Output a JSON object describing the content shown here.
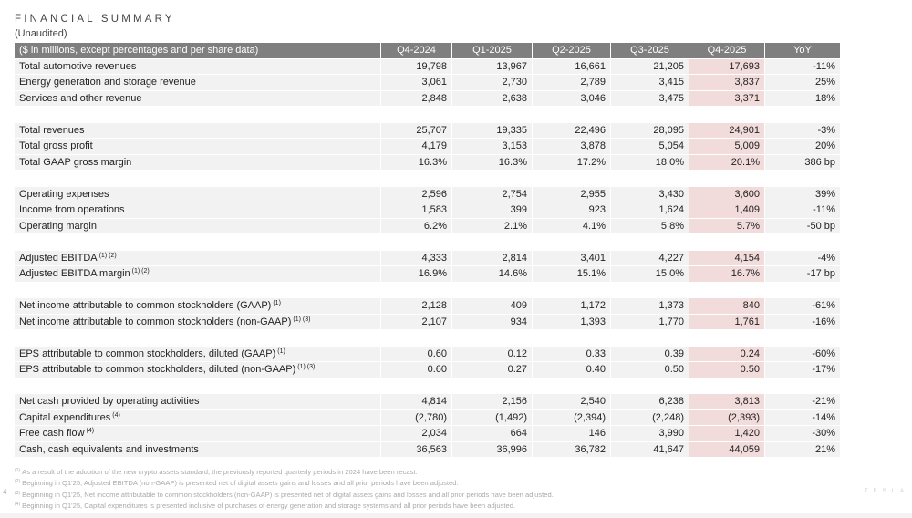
{
  "header": {
    "title": "FINANCIAL SUMMARY",
    "subtitle": "(Unaudited)"
  },
  "table": {
    "columns": [
      "($ in millions, except percentages and per share data)",
      "Q4-2024",
      "Q1-2025",
      "Q2-2025",
      "Q3-2025",
      "Q4-2025",
      "YoY"
    ],
    "highlight_color": "#f2dcdb",
    "header_color": "#7f7f7f",
    "groups": [
      [
        {
          "label": "Total automotive revenues",
          "sup": "",
          "values": [
            "19,798",
            "13,967",
            "16,661",
            "21,205",
            "17,693",
            "-11%"
          ]
        },
        {
          "label": "Energy generation and storage revenue",
          "sup": "",
          "values": [
            "3,061",
            "2,730",
            "2,789",
            "3,415",
            "3,837",
            "25%"
          ]
        },
        {
          "label": "Services and other revenue",
          "sup": "",
          "values": [
            "2,848",
            "2,638",
            "3,046",
            "3,475",
            "3,371",
            "18%"
          ]
        }
      ],
      [
        {
          "label": "Total revenues",
          "sup": "",
          "values": [
            "25,707",
            "19,335",
            "22,496",
            "28,095",
            "24,901",
            "-3%"
          ]
        },
        {
          "label": "Total gross profit",
          "sup": "",
          "values": [
            "4,179",
            "3,153",
            "3,878",
            "5,054",
            "5,009",
            "20%"
          ]
        },
        {
          "label": "Total GAAP gross margin",
          "sup": "",
          "values": [
            "16.3%",
            "16.3%",
            "17.2%",
            "18.0%",
            "20.1%",
            "386 bp"
          ]
        }
      ],
      [
        {
          "label": "Operating expenses",
          "sup": "",
          "values": [
            "2,596",
            "2,754",
            "2,955",
            "3,430",
            "3,600",
            "39%"
          ]
        },
        {
          "label": "Income from operations",
          "sup": "",
          "values": [
            "1,583",
            "399",
            "923",
            "1,624",
            "1,409",
            "-11%"
          ]
        },
        {
          "label": "Operating margin",
          "sup": "",
          "values": [
            "6.2%",
            "2.1%",
            "4.1%",
            "5.8%",
            "5.7%",
            "-50 bp"
          ]
        }
      ],
      [
        {
          "label": "Adjusted EBITDA",
          "sup": "(1) (2)",
          "values": [
            "4,333",
            "2,814",
            "3,401",
            "4,227",
            "4,154",
            "-4%"
          ]
        },
        {
          "label": "Adjusted EBITDA margin",
          "sup": "(1) (2)",
          "values": [
            "16.9%",
            "14.6%",
            "15.1%",
            "15.0%",
            "16.7%",
            "-17 bp"
          ]
        }
      ],
      [
        {
          "label": "Net income attributable to common stockholders (GAAP)",
          "sup": "(1)",
          "values": [
            "2,128",
            "409",
            "1,172",
            "1,373",
            "840",
            "-61%"
          ]
        },
        {
          "label": "Net income attributable to common stockholders (non-GAAP)",
          "sup": "(1) (3)",
          "values": [
            "2,107",
            "934",
            "1,393",
            "1,770",
            "1,761",
            "-16%"
          ]
        }
      ],
      [
        {
          "label": "EPS attributable to common stockholders, diluted (GAAP)",
          "sup": "(1)",
          "values": [
            "0.60",
            "0.12",
            "0.33",
            "0.39",
            "0.24",
            "-60%"
          ]
        },
        {
          "label": "EPS attributable to common stockholders, diluted (non-GAAP)",
          "sup": "(1) (3)",
          "values": [
            "0.60",
            "0.27",
            "0.40",
            "0.50",
            "0.50",
            "-17%"
          ]
        }
      ],
      [
        {
          "label": "Net cash provided by operating activities",
          "sup": "",
          "values": [
            "4,814",
            "2,156",
            "2,540",
            "6,238",
            "3,813",
            "-21%"
          ]
        },
        {
          "label": "Capital expenditures",
          "sup": "(4)",
          "values": [
            "(2,780)",
            "(1,492)",
            "(2,394)",
            "(2,248)",
            "(2,393)",
            "-14%"
          ]
        },
        {
          "label": "Free cash flow",
          "sup": "(4)",
          "values": [
            "2,034",
            "664",
            "146",
            "3,990",
            "1,420",
            "-30%"
          ]
        },
        {
          "label": "Cash, cash equivalents and investments",
          "sup": "",
          "values": [
            "36,563",
            "36,996",
            "36,782",
            "41,647",
            "44,059",
            "21%"
          ]
        }
      ]
    ]
  },
  "footnotes": [
    {
      "mark": "(1)",
      "text": "As a result of the adoption of the new crypto assets standard, the previously reported quarterly periods in 2024 have been recast."
    },
    {
      "mark": "(2)",
      "text": "Beginning in Q1'25, Adjusted EBITDA (non-GAAP) is presented net of digital assets gains and losses and all prior periods have been adjusted."
    },
    {
      "mark": "(3)",
      "text": "Beginning in Q1'25, Net income attributable to common stockholders (non-GAAP) is presented net of digital assets gains and losses and all prior periods have been adjusted."
    },
    {
      "mark": "(4)",
      "text": "Beginning in Q1'25, Capital expenditures is presented inclusive of purchases of energy generation and storage systems and all prior periods have been adjusted."
    }
  ],
  "page_number": "4",
  "brand": "TESLA"
}
